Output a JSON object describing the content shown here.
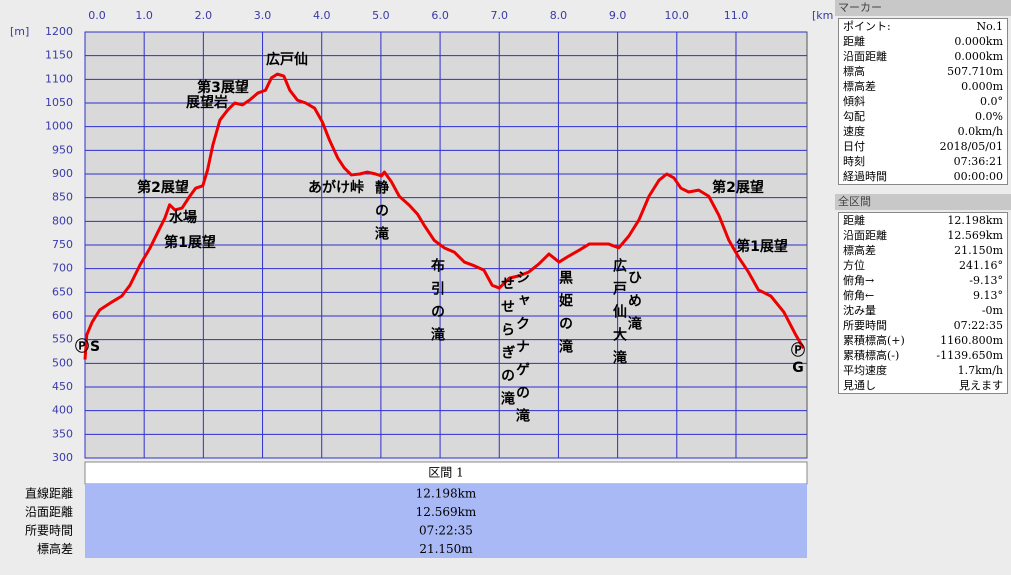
{
  "chart_data": {
    "type": "line",
    "x_unit": "[km]",
    "y_unit": "[m]",
    "x": [
      0,
      0.03,
      0.12,
      0.25,
      0.46,
      0.62,
      0.76,
      0.93,
      1.1,
      1.23,
      1.35,
      1.43,
      1.52,
      1.64,
      1.77,
      1.87,
      1.99,
      2.07,
      2.16,
      2.28,
      2.41,
      2.53,
      2.66,
      2.78,
      2.92,
      3.05,
      3.15,
      3.25,
      3.36,
      3.46,
      3.59,
      3.73,
      3.88,
      4.01,
      4.13,
      4.27,
      4.38,
      4.5,
      4.64,
      4.77,
      4.91,
      5.01,
      5.06,
      5.18,
      5.31,
      5.48,
      5.62,
      5.73,
      5.9,
      6.07,
      6.24,
      6.41,
      6.58,
      6.74,
      6.88,
      7.0,
      7.17,
      7.34,
      7.5,
      7.67,
      7.84,
      8.01,
      8.18,
      8.35,
      8.52,
      8.68,
      8.85,
      9.02,
      9.19,
      9.36,
      9.53,
      9.7,
      9.83,
      9.95,
      10.07,
      10.2,
      10.37,
      10.54,
      10.71,
      10.88,
      11.05,
      11.21,
      11.38,
      11.59,
      11.81,
      12.01,
      12.14
    ],
    "values": [
      508,
      560,
      587,
      613,
      630,
      642,
      665,
      708,
      744,
      777,
      807,
      835,
      824,
      828,
      853,
      870,
      875,
      908,
      961,
      1014,
      1035,
      1050,
      1046,
      1056,
      1071,
      1077,
      1103,
      1111,
      1107,
      1077,
      1056,
      1050,
      1039,
      1010,
      972,
      934,
      913,
      898,
      900,
      904,
      900,
      896,
      904,
      883,
      853,
      834,
      815,
      792,
      760,
      744,
      735,
      714,
      706,
      697,
      665,
      659,
      680,
      685,
      693,
      710,
      731,
      714,
      727,
      739,
      752,
      752,
      752,
      744,
      769,
      803,
      853,
      887,
      900,
      892,
      870,
      862,
      866,
      853,
      813,
      760,
      723,
      693,
      655,
      642,
      608,
      560,
      532
    ],
    "color": "#ee0000",
    "xlim": [
      0,
      12.2
    ],
    "ylim": [
      300,
      1200
    ],
    "xticks": [
      {
        "value": 0,
        "label": "0.0"
      },
      {
        "value": 1,
        "label": "1.0"
      },
      {
        "value": 2,
        "label": "2.0"
      },
      {
        "value": 3,
        "label": "3.0"
      },
      {
        "value": 4,
        "label": "4.0"
      },
      {
        "value": 5,
        "label": "5.0"
      },
      {
        "value": 6,
        "label": "6.0"
      },
      {
        "value": 7,
        "label": "7.0"
      },
      {
        "value": 8,
        "label": "8.0"
      },
      {
        "value": 9,
        "label": "9.0"
      },
      {
        "value": 10,
        "label": "10.0"
      },
      {
        "value": 11,
        "label": "11.0"
      }
    ],
    "yticks": [
      300,
      350,
      400,
      450,
      500,
      550,
      600,
      650,
      700,
      750,
      800,
      850,
      900,
      950,
      1000,
      1050,
      1100,
      1150,
      1200
    ],
    "grid": true,
    "annotations": [
      "広戸仙",
      "第3展望",
      "展望岩",
      "第2展望",
      "水場",
      "第1展望",
      "あがけ峠",
      "静の滝",
      "布引の滝",
      "せせらぎの滝",
      "シャクナゲの滝",
      "黒姫の滝",
      "広戸仙大滝",
      "ひめ滝",
      "第2展望",
      "第1展望",
      "Ⓟ",
      "S",
      "Ⓟ",
      "G"
    ]
  },
  "marker_panel": {
    "title": "マーカー",
    "rows": [
      [
        "ポイント:",
        "No.1"
      ],
      [
        "距離",
        "0.000km"
      ],
      [
        "沿面距離",
        "0.000km"
      ],
      [
        "標高",
        "507.710m"
      ],
      [
        "標高差",
        "0.000m"
      ],
      [
        "傾斜",
        "0.0°"
      ],
      [
        "勾配",
        "0.0%"
      ],
      [
        "速度",
        "0.0km/h"
      ],
      [
        "日付",
        "2018/05/01"
      ],
      [
        "時刻",
        "07:36:21"
      ],
      [
        "経過時間",
        "00:00:00"
      ]
    ]
  },
  "total_panel": {
    "title": "全区間",
    "rows": [
      [
        "距離",
        "12.198km"
      ],
      [
        "沿面距離",
        "12.569km"
      ],
      [
        "標高差",
        "21.150m"
      ],
      [
        "方位",
        "241.16°"
      ],
      [
        "俯角→",
        "-9.13°"
      ],
      [
        "俯角←",
        "9.13°"
      ],
      [
        "沈み量",
        "-0m"
      ],
      [
        "所要時間",
        "07:22:35"
      ],
      [
        "累積標高(+)",
        "1160.800m"
      ],
      [
        "累積標高(-)",
        "-1139.650m"
      ],
      [
        "平均速度",
        "1.7km/h"
      ],
      [
        "見通し",
        "見えます"
      ]
    ]
  },
  "section_table": {
    "title": "区間 1",
    "rows": [
      [
        "直線距離",
        "12.198km"
      ],
      [
        "沿面距離",
        "12.569km"
      ],
      [
        "所要時間",
        "07:22:35"
      ],
      [
        "標高差",
        "21.150m"
      ]
    ]
  }
}
